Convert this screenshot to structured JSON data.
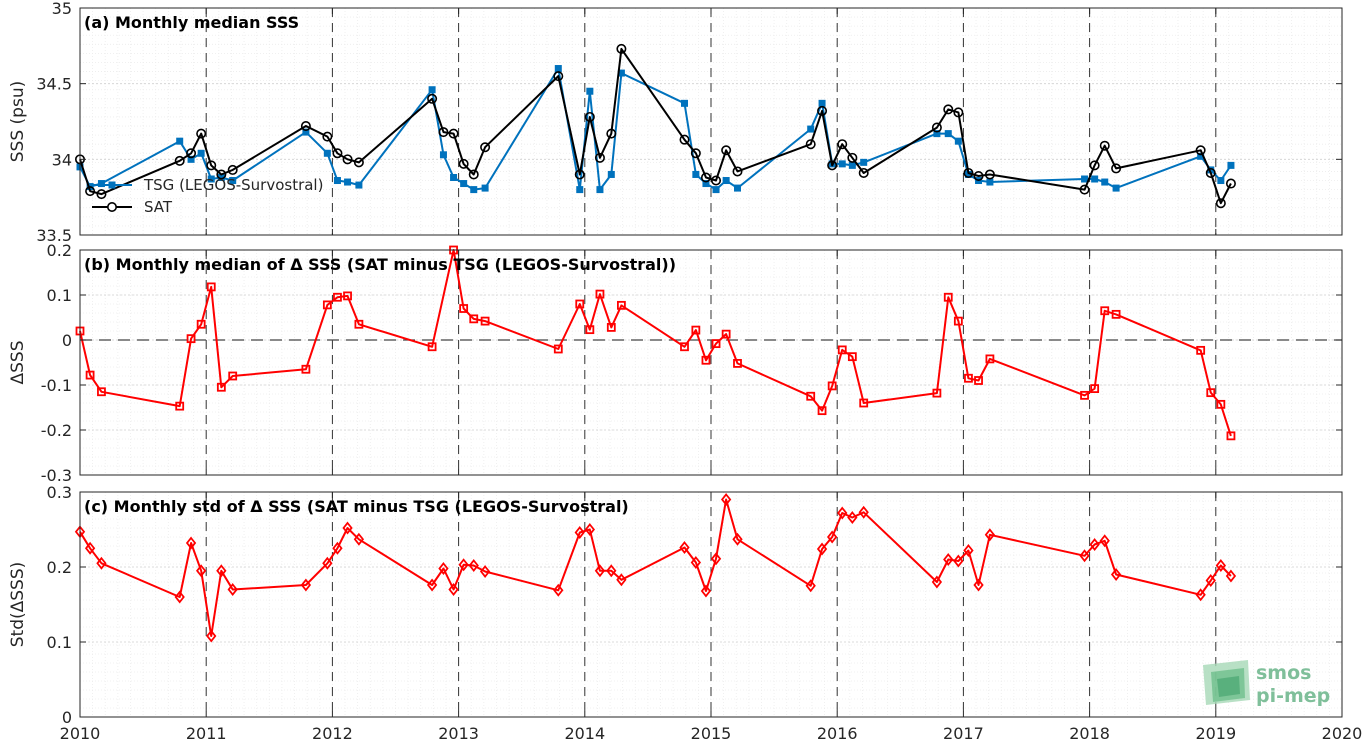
{
  "chart_data": [
    {
      "type": "line",
      "title": "(a) Monthly median SSS",
      "ylabel": "SSS (psu)",
      "ylim": [
        33.5,
        35
      ],
      "xlim": [
        2010,
        2020
      ],
      "yticks": [
        33.5,
        34,
        34.5,
        35
      ],
      "ytick_labels": [
        "33.5",
        "34",
        "34.5",
        "35"
      ],
      "grid": true,
      "legend_position": "left",
      "series": [
        {
          "name": "TSG (LEGOS-Survostral)",
          "color": "#0072bd",
          "marker": "filled-square",
          "x": [
            2010.0,
            2010.08,
            2010.17,
            2010.79,
            2010.88,
            2010.96,
            2011.04,
            2011.12,
            2011.21,
            2011.79,
            2011.96,
            2012.04,
            2012.12,
            2012.21,
            2012.79,
            2012.88,
            2012.96,
            2013.04,
            2013.12,
            2013.21,
            2013.79,
            2013.96,
            2014.04,
            2014.12,
            2014.21,
            2014.29,
            2014.79,
            2014.88,
            2014.96,
            2015.04,
            2015.12,
            2015.21,
            2015.79,
            2015.88,
            2015.96,
            2016.04,
            2016.12,
            2016.21,
            2016.79,
            2016.88,
            2016.96,
            2017.04,
            2017.12,
            2017.21,
            2017.96,
            2018.04,
            2018.12,
            2018.21,
            2018.88,
            2018.96,
            2019.04,
            2019.12
          ],
          "y": [
            33.95,
            33.82,
            33.84,
            34.12,
            34.0,
            34.04,
            33.87,
            33.88,
            33.86,
            34.18,
            34.04,
            33.86,
            33.85,
            33.83,
            34.46,
            34.03,
            33.88,
            33.84,
            33.8,
            33.81,
            34.6,
            33.8,
            34.45,
            33.8,
            33.9,
            34.57,
            34.37,
            33.9,
            33.84,
            33.8,
            33.86,
            33.81,
            34.2,
            34.37,
            33.97,
            33.97,
            33.96,
            33.98,
            34.17,
            34.17,
            34.12,
            33.9,
            33.86,
            33.85,
            33.87,
            33.87,
            33.85,
            33.81,
            34.02,
            33.93,
            33.86,
            33.96
          ]
        },
        {
          "name": "SAT",
          "color": "#000000",
          "marker": "open-circle",
          "x": [
            2010.0,
            2010.08,
            2010.17,
            2010.79,
            2010.88,
            2010.96,
            2011.04,
            2011.12,
            2011.21,
            2011.79,
            2011.96,
            2012.04,
            2012.12,
            2012.21,
            2012.79,
            2012.88,
            2012.96,
            2013.04,
            2013.12,
            2013.21,
            2013.79,
            2013.96,
            2014.04,
            2014.12,
            2014.21,
            2014.29,
            2014.79,
            2014.88,
            2014.96,
            2015.04,
            2015.12,
            2015.21,
            2015.79,
            2015.88,
            2015.96,
            2016.04,
            2016.12,
            2016.21,
            2016.79,
            2016.88,
            2016.96,
            2017.04,
            2017.12,
            2017.21,
            2017.96,
            2018.04,
            2018.12,
            2018.21,
            2018.88,
            2018.96,
            2019.04,
            2019.12
          ],
          "y": [
            34.0,
            33.79,
            33.77,
            33.99,
            34.04,
            34.17,
            33.96,
            33.9,
            33.93,
            34.22,
            34.15,
            34.04,
            34.0,
            33.98,
            34.4,
            34.18,
            34.17,
            33.97,
            33.9,
            34.08,
            34.55,
            33.9,
            34.28,
            34.01,
            34.17,
            34.73,
            34.13,
            34.04,
            33.88,
            33.86,
            34.06,
            33.92,
            34.1,
            34.32,
            33.96,
            34.1,
            34.01,
            33.91,
            34.21,
            34.33,
            34.31,
            33.91,
            33.89,
            33.9,
            33.8,
            33.96,
            34.09,
            33.94,
            34.06,
            33.91,
            33.71,
            33.84
          ]
        }
      ]
    },
    {
      "type": "line",
      "title": "(b) Monthly median of Δ SSS (SAT minus TSG (LEGOS-Survostral))",
      "ylabel": "ΔSSS",
      "ylim": [
        -0.3,
        0.2
      ],
      "xlim": [
        2010,
        2020
      ],
      "yticks": [
        -0.3,
        -0.2,
        -0.1,
        0,
        0.1,
        0.2
      ],
      "ytick_labels": [
        "-0.3",
        "-0.2",
        "-0.1",
        "0",
        "0.1",
        "0.2"
      ],
      "grid": true,
      "zero_line": true,
      "series": [
        {
          "color": "#ff0000",
          "marker": "square",
          "x": [
            2010.0,
            2010.08,
            2010.17,
            2010.79,
            2010.88,
            2010.96,
            2011.04,
            2011.12,
            2011.21,
            2011.79,
            2011.96,
            2012.04,
            2012.12,
            2012.21,
            2012.79,
            2012.96,
            2013.04,
            2013.12,
            2013.21,
            2013.79,
            2013.96,
            2014.04,
            2014.12,
            2014.21,
            2014.29,
            2014.79,
            2014.88,
            2014.96,
            2015.04,
            2015.12,
            2015.21,
            2015.79,
            2015.88,
            2015.96,
            2016.04,
            2016.12,
            2016.21,
            2016.79,
            2016.88,
            2016.96,
            2017.04,
            2017.12,
            2017.21,
            2017.96,
            2018.04,
            2018.12,
            2018.21,
            2018.88,
            2018.96,
            2019.04,
            2019.12
          ],
          "y": [
            0.02,
            -0.078,
            -0.115,
            -0.147,
            0.003,
            0.035,
            0.118,
            -0.105,
            -0.08,
            -0.065,
            0.078,
            0.095,
            0.098,
            0.035,
            -0.015,
            0.2,
            0.07,
            0.047,
            0.042,
            -0.02,
            0.08,
            0.023,
            0.102,
            0.028,
            0.077,
            -0.015,
            0.022,
            -0.045,
            -0.008,
            0.013,
            -0.052,
            -0.125,
            -0.157,
            -0.102,
            -0.022,
            -0.037,
            -0.14,
            -0.118,
            0.095,
            0.042,
            -0.085,
            -0.09,
            -0.042,
            -0.123,
            -0.108,
            0.065,
            0.057,
            -0.023,
            -0.117,
            -0.143,
            -0.213
          ]
        }
      ]
    },
    {
      "type": "line",
      "title": "(c) Monthly std of Δ SSS (SAT minus TSG (LEGOS-Survostral)",
      "ylabel": "Std(ΔSSS)",
      "ylim": [
        0,
        0.3
      ],
      "xlim": [
        2010,
        2020
      ],
      "yticks": [
        0,
        0.1,
        0.2,
        0.3
      ],
      "ytick_labels": [
        "0",
        "0.1",
        "0.2",
        "0.3"
      ],
      "xticks": [
        2010,
        2011,
        2012,
        2013,
        2014,
        2015,
        2016,
        2017,
        2018,
        2019,
        2020
      ],
      "xtick_labels": [
        "2010",
        "2011",
        "2012",
        "2013",
        "2014",
        "2015",
        "2016",
        "2017",
        "2018",
        "2019",
        "2020"
      ],
      "grid": true,
      "series": [
        {
          "color": "#ff0000",
          "marker": "diamond",
          "x": [
            2010.0,
            2010.08,
            2010.17,
            2010.79,
            2010.88,
            2010.96,
            2011.04,
            2011.12,
            2011.21,
            2011.79,
            2011.96,
            2012.04,
            2012.12,
            2012.21,
            2012.79,
            2012.88,
            2012.96,
            2013.04,
            2013.12,
            2013.21,
            2013.79,
            2013.96,
            2014.04,
            2014.12,
            2014.21,
            2014.29,
            2014.79,
            2014.88,
            2014.96,
            2015.04,
            2015.12,
            2015.21,
            2015.79,
            2015.88,
            2015.96,
            2016.04,
            2016.12,
            2016.21,
            2016.79,
            2016.88,
            2016.96,
            2017.04,
            2017.12,
            2017.21,
            2017.96,
            2018.04,
            2018.12,
            2018.21,
            2018.88,
            2018.96,
            2019.04,
            2019.12
          ],
          "y": [
            0.247,
            0.225,
            0.205,
            0.16,
            0.232,
            0.195,
            0.108,
            0.195,
            0.17,
            0.176,
            0.205,
            0.225,
            0.252,
            0.237,
            0.176,
            0.198,
            0.17,
            0.203,
            0.202,
            0.194,
            0.169,
            0.246,
            0.25,
            0.195,
            0.195,
            0.183,
            0.226,
            0.206,
            0.168,
            0.211,
            0.29,
            0.237,
            0.175,
            0.224,
            0.24,
            0.272,
            0.266,
            0.273,
            0.18,
            0.21,
            0.208,
            0.222,
            0.176,
            0.243,
            0.215,
            0.23,
            0.235,
            0.19,
            0.163,
            0.182,
            0.202,
            0.188
          ]
        }
      ]
    }
  ],
  "logo": {
    "line1": "smos",
    "line2": "pi-mep"
  }
}
